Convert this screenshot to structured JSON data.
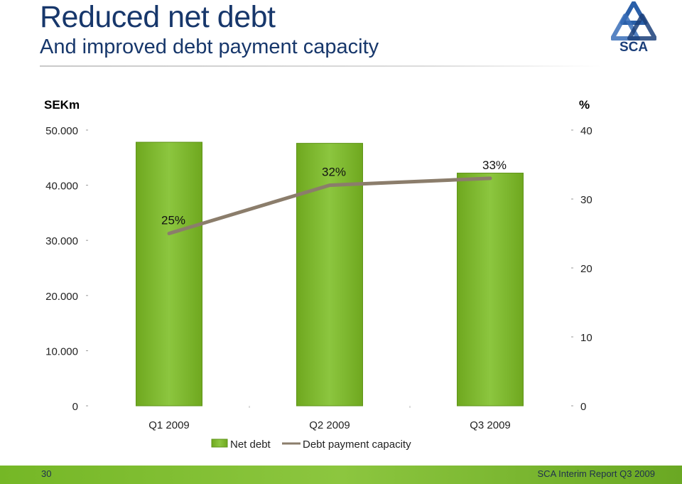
{
  "header": {
    "title": "Reduced net debt",
    "subtitle": "And improved debt payment capacity",
    "logo_text": "SCA"
  },
  "footer": {
    "page_number": "30",
    "text": "SCA Interim Report Q3 2009"
  },
  "colors": {
    "bar": "#8cc63f",
    "line": "#8b7d6b",
    "title": "#17376b",
    "footer": "#7ab92e"
  },
  "chart_data": {
    "type": "bar",
    "categories": [
      "Q1 2009",
      "Q2 2009",
      "Q3 2009"
    ],
    "series": [
      {
        "name": "Net debt",
        "type": "bar",
        "axis": "left",
        "values": [
          47800,
          47600,
          42200
        ]
      },
      {
        "name": "Debt payment capacity",
        "type": "line",
        "axis": "right",
        "values": [
          25,
          32,
          33
        ],
        "labels": [
          "25%",
          "32%",
          "33%"
        ]
      }
    ],
    "y_left": {
      "unit": "SEKm",
      "ylim": [
        0,
        50000
      ],
      "ticks": [
        0,
        10000,
        20000,
        30000,
        40000,
        50000
      ],
      "tick_labels": [
        "0",
        "10.000",
        "20.000",
        "30.000",
        "40.000",
        "50.000"
      ]
    },
    "y_right": {
      "unit": "%",
      "ylim": [
        0,
        40
      ],
      "ticks": [
        0,
        10,
        20,
        30,
        40
      ],
      "tick_labels": [
        "0",
        "10",
        "20",
        "30",
        "40"
      ]
    },
    "legend_position": "bottom",
    "grid": false
  }
}
